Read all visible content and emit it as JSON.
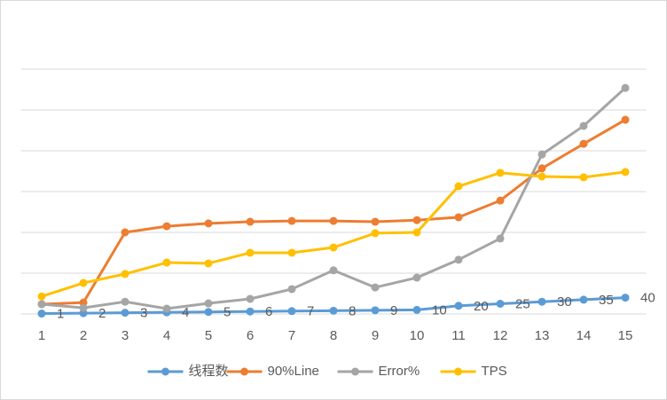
{
  "chart_data": {
    "type": "line",
    "categories": [
      "1",
      "2",
      "3",
      "4",
      "5",
      "6",
      "7",
      "8",
      "9",
      "10",
      "11",
      "12",
      "13",
      "14",
      "15"
    ],
    "series": [
      {
        "name": "线程数",
        "color": "#5b9bd5",
        "data_labels": true,
        "values": [
          1,
          2,
          3,
          4,
          5,
          6,
          7,
          8,
          9,
          10,
          20,
          25,
          30,
          35,
          40
        ]
      },
      {
        "name": "90%Line",
        "color": "#ed7d31",
        "values": [
          24,
          28,
          200,
          215,
          222,
          226,
          228,
          228,
          226,
          230,
          237,
          278,
          357,
          417,
          476
        ]
      },
      {
        "name": "Error%",
        "color": "#a5a5a5",
        "values": [
          24,
          15,
          30,
          13,
          26,
          37,
          61,
          107,
          65,
          89,
          133,
          185,
          391,
          461,
          554
        ]
      },
      {
        "name": "TPS",
        "color": "#ffc000",
        "values": [
          43,
          76,
          98,
          126,
          124,
          150,
          150,
          163,
          198,
          200,
          313,
          346,
          337,
          335,
          348
        ]
      }
    ],
    "ylim": [
      0,
      600
    ],
    "yticks": [
      0,
      100,
      200,
      300,
      400,
      500,
      600
    ],
    "grid": true,
    "legend": "bottom"
  }
}
